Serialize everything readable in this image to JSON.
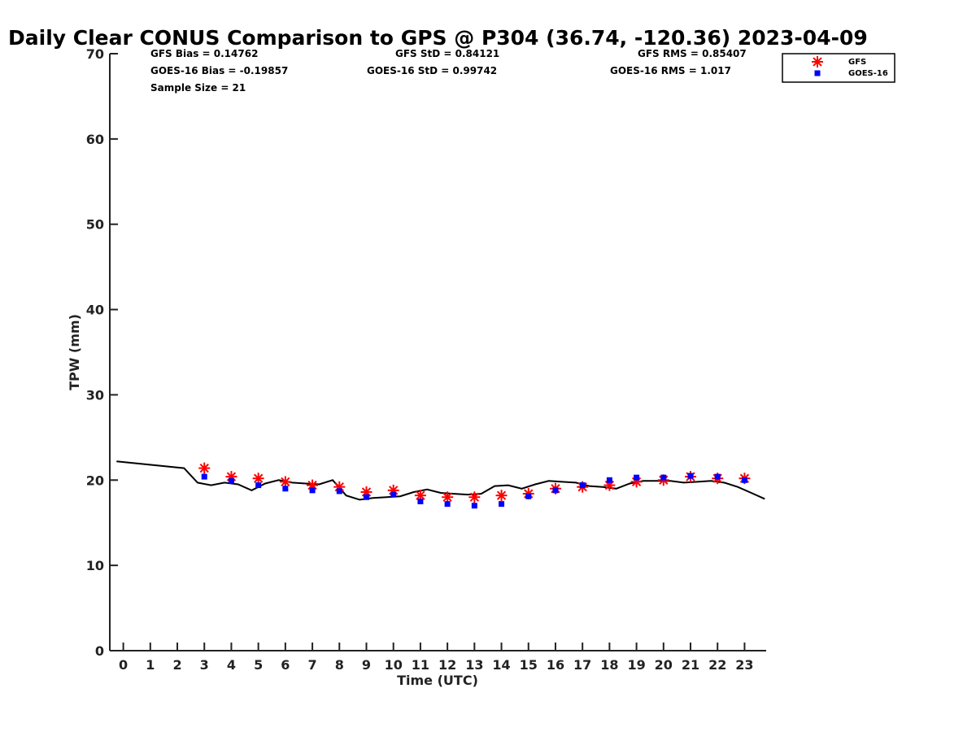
{
  "chart_data": {
    "type": "scatter",
    "title": "Daily Clear CONUS Comparison to GPS @ P304 (36.74, -120.36) 2023-04-09",
    "xlabel": "Time (UTC)",
    "ylabel": "TPW (mm)",
    "xlim": [
      -0.5,
      23.8
    ],
    "ylim": [
      0,
      70
    ],
    "xticks": [
      0,
      1,
      2,
      3,
      4,
      5,
      6,
      7,
      8,
      9,
      10,
      11,
      12,
      13,
      14,
      15,
      16,
      17,
      18,
      19,
      20,
      21,
      22,
      23
    ],
    "yticks": [
      0,
      10,
      20,
      30,
      40,
      50,
      60,
      70
    ],
    "grid": false,
    "legend_position": "top-right",
    "stats": {
      "gfs_bias": "GFS Bias = 0.14762",
      "gfs_std": "GFS StD = 0.84121",
      "gfs_rms": "GFS RMS = 0.85407",
      "goes_bias": "GOES-16 Bias = -0.19857",
      "goes_std": "GOES-16 StD = 0.99742",
      "goes_rms": "GOES-16 RMS = 1.017",
      "sample_size": "Sample Size = 21"
    },
    "series": [
      {
        "name": "GFS",
        "marker": "asterisk",
        "color": "#ff0000",
        "x": [
          3,
          4,
          5,
          6,
          7,
          8,
          9,
          10,
          11,
          12,
          13,
          14,
          15,
          16,
          17,
          18,
          19,
          20,
          21,
          22,
          23
        ],
        "y": [
          21.4,
          20.4,
          20.2,
          19.8,
          19.4,
          19.2,
          18.6,
          18.8,
          18.2,
          18.0,
          18.0,
          18.2,
          18.4,
          19.0,
          19.2,
          19.4,
          19.8,
          20.0,
          20.4,
          20.2,
          20.2
        ]
      },
      {
        "name": "GOES-16",
        "marker": "square",
        "color": "#0000ff",
        "x": [
          3,
          4,
          5,
          6,
          7,
          8,
          9,
          10,
          11,
          12,
          13,
          14,
          15,
          16,
          17,
          18,
          19,
          20,
          21,
          22,
          23
        ],
        "y": [
          20.4,
          19.9,
          19.4,
          19.0,
          18.8,
          18.7,
          18.0,
          18.3,
          17.5,
          17.2,
          17.0,
          17.2,
          18.1,
          18.8,
          19.4,
          20.0,
          20.3,
          20.3,
          20.5,
          20.4,
          20.0
        ]
      },
      {
        "name": "GPS",
        "marker": "line",
        "color": "#000000",
        "x": [
          -0.25,
          2.25,
          2.75,
          3.25,
          3.75,
          4.25,
          4.75,
          5.25,
          5.75,
          6.25,
          6.75,
          7.25,
          7.75,
          8.25,
          8.75,
          9.25,
          9.75,
          10.25,
          10.75,
          11.25,
          11.75,
          12.25,
          12.75,
          13.25,
          13.75,
          14.25,
          14.75,
          15.25,
          15.75,
          16.25,
          16.75,
          17.25,
          17.75,
          18.25,
          18.75,
          19.25,
          19.75,
          20.25,
          20.75,
          21.25,
          21.75,
          22.25,
          22.75,
          23.25,
          23.75
        ],
        "y": [
          22.2,
          21.4,
          19.7,
          19.4,
          19.7,
          19.5,
          18.8,
          19.6,
          20.0,
          19.7,
          19.6,
          19.5,
          20.0,
          18.2,
          17.7,
          17.9,
          18.0,
          18.1,
          18.6,
          18.9,
          18.5,
          18.4,
          18.3,
          18.4,
          19.3,
          19.4,
          19.0,
          19.5,
          19.9,
          19.8,
          19.7,
          19.3,
          19.2,
          19.0,
          19.6,
          19.9,
          19.9,
          19.9,
          19.7,
          19.8,
          19.9,
          19.7,
          19.2,
          18.5,
          17.8
        ]
      }
    ]
  }
}
